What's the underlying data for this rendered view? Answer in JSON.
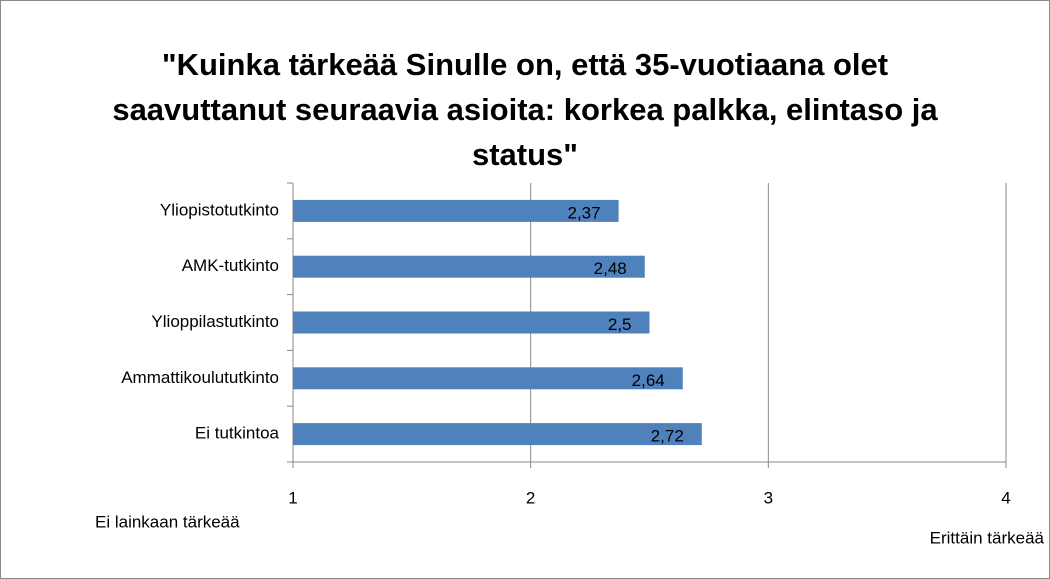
{
  "chart_data": {
    "type": "barh",
    "title": "\"Kuinka tärkeää Sinulle on, että 35-vuotiaana olet saavuttanut seuraavia asioita: korkea palkka, elintaso ja status\"",
    "categories": [
      "Yliopistotutkinto",
      "AMK-tutkinto",
      "Ylioppilastutkinto",
      "Ammattikoulututkinto",
      "Ei tutkintoa"
    ],
    "values": [
      2.37,
      2.48,
      2.5,
      2.64,
      2.72
    ],
    "value_labels": [
      "2,37",
      "2,48",
      "2,5",
      "2,64",
      "2,72"
    ],
    "color": "#4f81bd",
    "xlim": [
      1,
      4
    ],
    "xticks": [
      1,
      2,
      3,
      4
    ],
    "grid": true,
    "annotations": [
      "Ei lainkaan tärkeää",
      "Erittäin tärkeää"
    ]
  }
}
